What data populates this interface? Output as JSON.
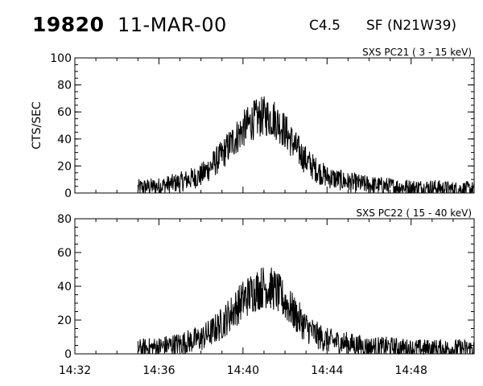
{
  "header": {
    "event_id": "19820",
    "date": "11-MAR-00",
    "flare_class": "C4.5",
    "location": "SF (N21W39)"
  },
  "chart_data": [
    {
      "type": "line",
      "title": "SXS PC21  (  3 - 15 keV)",
      "ylabel": "CTS/SEC",
      "xlabel": "",
      "xlim": [
        "14:32",
        "14:51"
      ],
      "ylim": [
        0,
        100
      ],
      "yticks": [
        0,
        20,
        40,
        60,
        80,
        100
      ],
      "xticks": [],
      "grid": false,
      "series": [
        {
          "x": [
            "14:35",
            "14:36",
            "14:37",
            "14:38",
            "14:38:30",
            "14:39",
            "14:39:30",
            "14:40",
            "14:40:30",
            "14:41",
            "14:41:30",
            "14:42",
            "14:42:30",
            "14:43",
            "14:43:30",
            "14:44",
            "14:45",
            "14:46",
            "14:47",
            "14:48",
            "14:49",
            "14:50",
            "14:51"
          ],
          "values": [
            4,
            5,
            8,
            13,
            20,
            28,
            38,
            47,
            54,
            57,
            55,
            46,
            34,
            24,
            17,
            12,
            8,
            6,
            5,
            4,
            4,
            3,
            3
          ]
        }
      ]
    },
    {
      "type": "line",
      "title": "SXS PC22  ( 15 - 40 keV)",
      "ylabel": "",
      "xlabel": "",
      "xlim": [
        "14:32",
        "14:51"
      ],
      "ylim": [
        0,
        80
      ],
      "yticks": [
        0,
        20,
        40,
        60,
        80
      ],
      "xticks": [
        "14:32",
        "14:36",
        "14:40",
        "14:44",
        "14:48"
      ],
      "grid": false,
      "series": [
        {
          "x": [
            "14:35",
            "14:36",
            "14:37",
            "14:38",
            "14:38:30",
            "14:39",
            "14:39:30",
            "14:40",
            "14:40:30",
            "14:41",
            "14:41:30",
            "14:42",
            "14:42:30",
            "14:43",
            "14:43:30",
            "14:44",
            "14:45",
            "14:46",
            "14:47",
            "14:48",
            "14:49",
            "14:50",
            "14:51"
          ],
          "values": [
            3,
            4,
            6,
            9,
            13,
            18,
            25,
            32,
            37,
            40,
            38,
            31,
            23,
            16,
            11,
            8,
            6,
            4,
            4,
            3,
            3,
            3,
            3
          ]
        }
      ]
    }
  ]
}
